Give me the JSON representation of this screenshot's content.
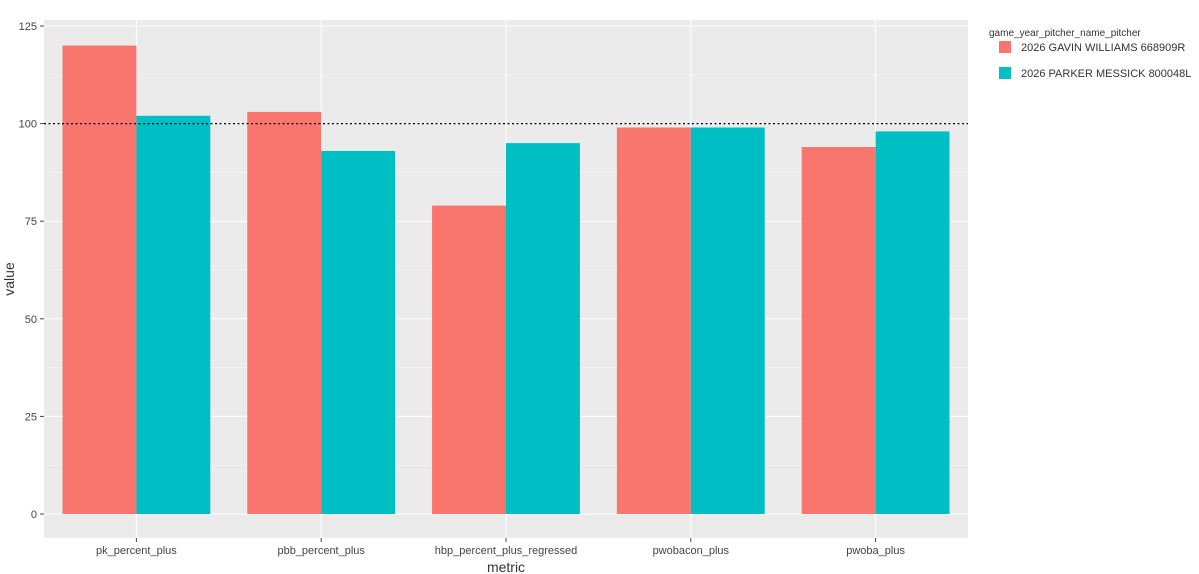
{
  "chart_data": {
    "type": "bar",
    "title": "",
    "xlabel": "metric",
    "ylabel": "value",
    "categories": [
      "pk_percent_plus",
      "pbb_percent_plus",
      "hbp_percent_plus_regressed",
      "pwobacon_plus",
      "pwoba_plus"
    ],
    "series": [
      {
        "name": "2026 GAVIN WILLIAMS 668909R",
        "color": "#F8766D",
        "values": [
          120,
          103,
          79,
          99,
          94
        ]
      },
      {
        "name": "2026 PARKER MESSICK 800048L",
        "color": "#00BFC4",
        "values": [
          102,
          93,
          95,
          99,
          98
        ]
      }
    ],
    "ylim": [
      0,
      125
    ],
    "yticks": [
      0,
      25,
      50,
      75,
      100,
      125
    ],
    "reference_line": {
      "y": 100,
      "style": "dotted",
      "color": "#000000"
    },
    "grid": true,
    "plot_background": "#EBEBEB",
    "legend": {
      "title": "game_year_pitcher_name_pitcher",
      "position": "top-right"
    }
  }
}
